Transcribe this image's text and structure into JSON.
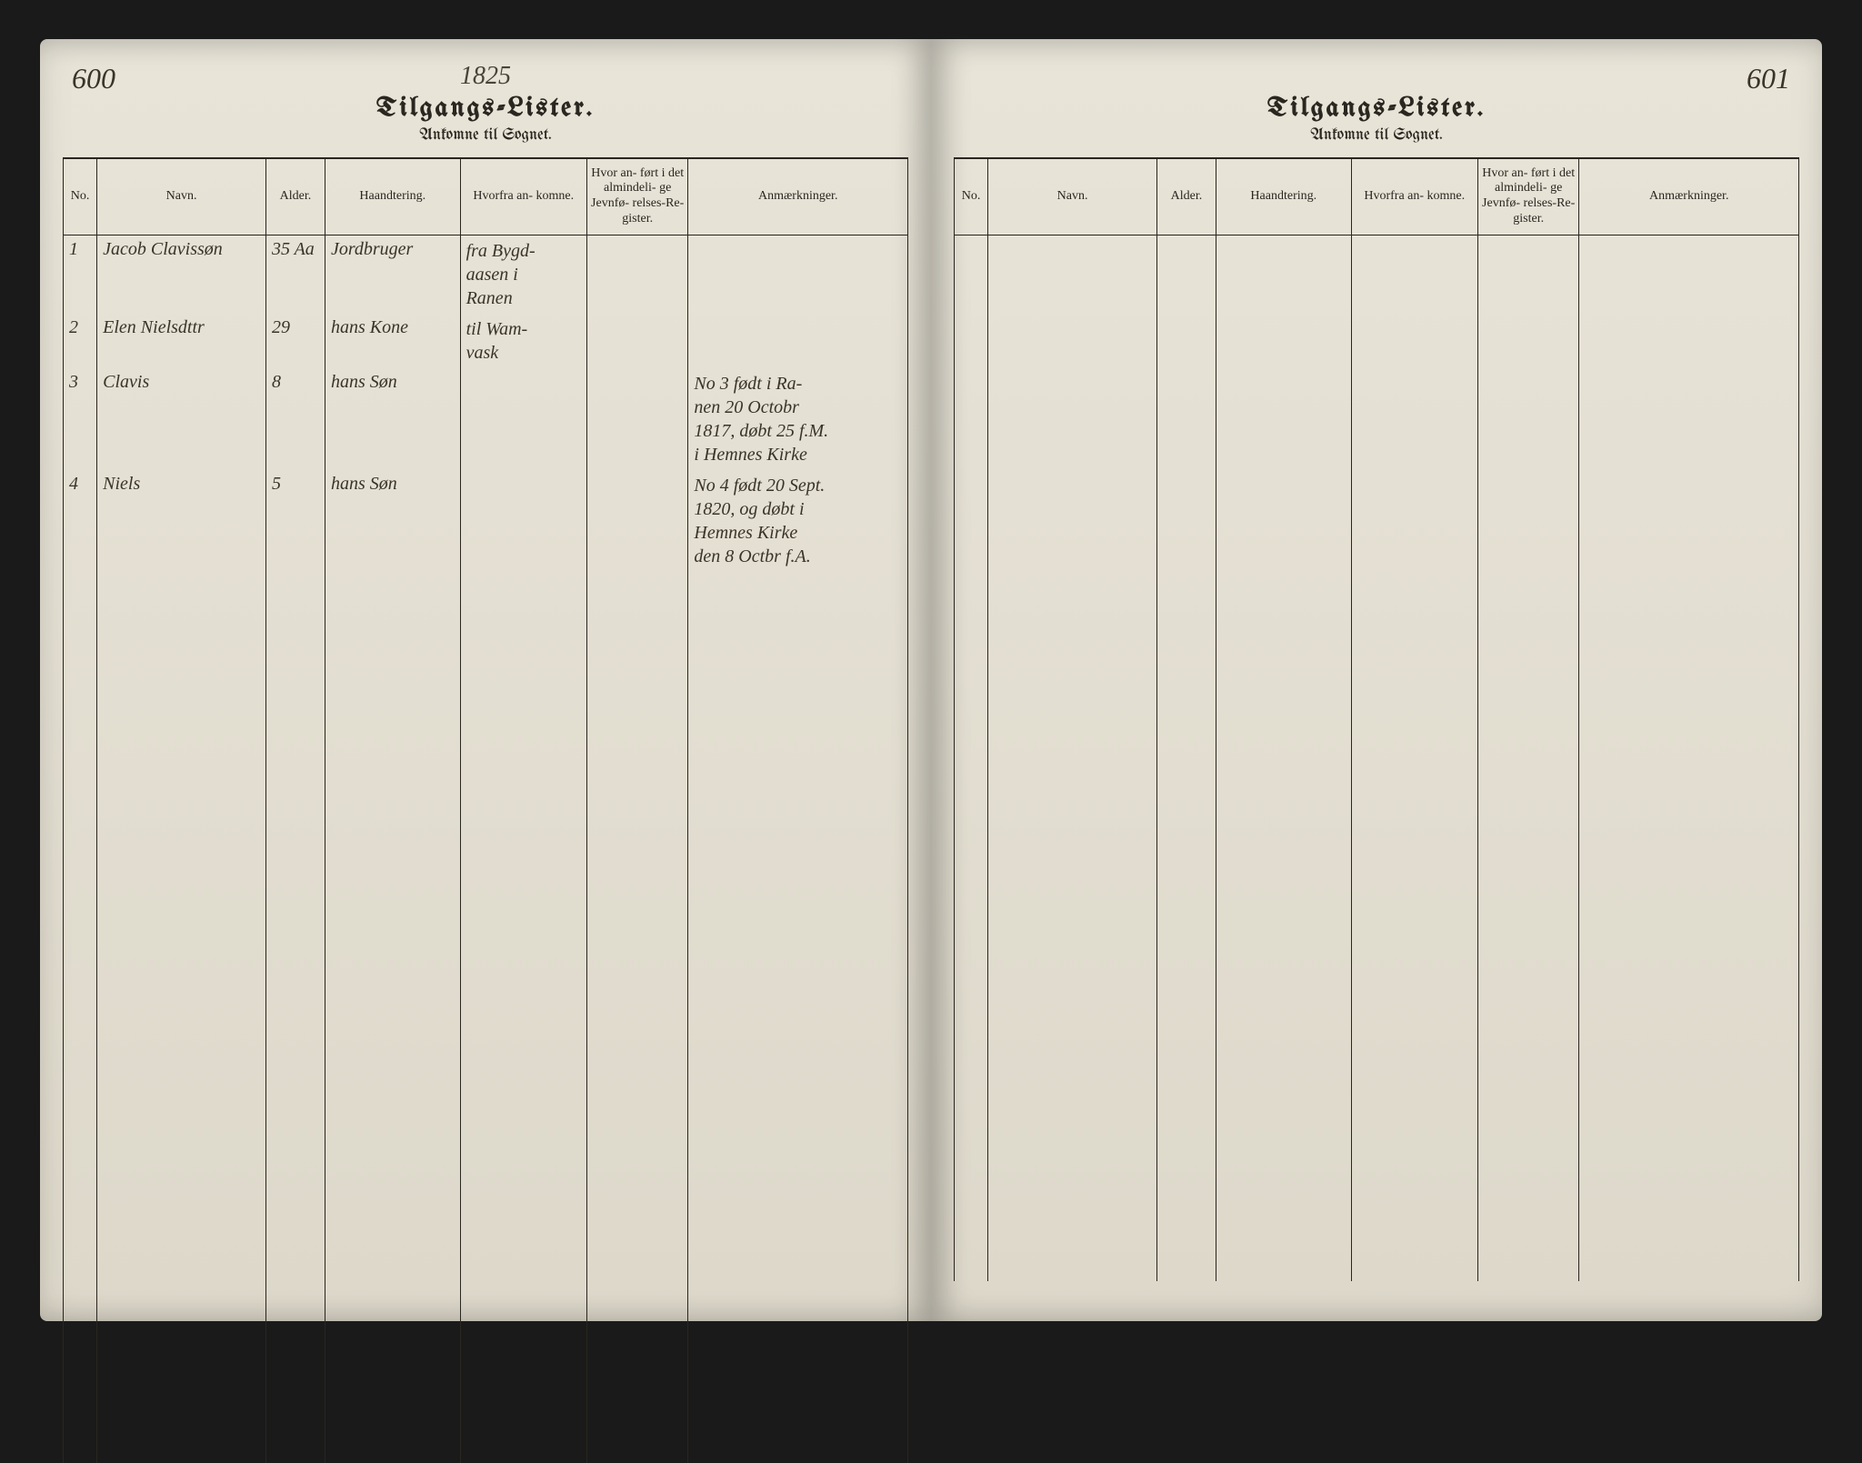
{
  "leftPage": {
    "pageNumber": "600",
    "year": "1825",
    "title": "Tilgangs-Lister.",
    "subtitle": "Ankomne til Sognet.",
    "columns": {
      "no": "No.",
      "name": "Navn.",
      "age": "Alder.",
      "work": "Haandtering.",
      "from": "Hvorfra an-\nkomne.",
      "ref": "Hvor an-\nført i det\nalmindeli-\nge Jevnfø-\nrelses-Re-\ngister.",
      "notes": "Anmærkninger."
    },
    "rows": [
      {
        "no": "1",
        "name": "Jacob Clavissøn",
        "age": "35 Aa",
        "work": "Jordbruger",
        "from": "fra Bygd-\naasen i\nRanen",
        "ref": "",
        "notes": ""
      },
      {
        "no": "2",
        "name": "Elen Nielsdttr",
        "age": "29",
        "work": "hans Kone",
        "from": "til Wam-\nvask",
        "ref": "",
        "notes": ""
      },
      {
        "no": "3",
        "name": "Clavis",
        "age": "8",
        "work": "hans Søn",
        "from": "",
        "ref": "",
        "notes": "No 3 født i Ra-\nnen 20 Octobr\n1817, døbt 25 f.M.\ni Hemnes Kirke"
      },
      {
        "no": "4",
        "name": "Niels",
        "age": "5",
        "work": "hans Søn",
        "from": "",
        "ref": "",
        "notes": "No 4 født 20 Sept.\n1820, og døbt i\nHemnes Kirke\nden 8 Octbr f.A."
      }
    ]
  },
  "rightPage": {
    "pageNumber": "601",
    "title": "Tilgangs-Lister.",
    "subtitle": "Ankomne til Sognet.",
    "columns": {
      "no": "No.",
      "name": "Navn.",
      "age": "Alder.",
      "work": "Haandtering.",
      "from": "Hvorfra an-\nkomne.",
      "ref": "Hvor an-\nført i det\nalmindeli-\nge Jevnfø-\nrelses-Re-\ngister.",
      "notes": "Anmærkninger."
    },
    "rows": []
  },
  "styling": {
    "paper_color": "#e8e4d8",
    "ink_color": "#2a2620",
    "handwriting_color": "#3a3428",
    "border_width": 1.5
  }
}
